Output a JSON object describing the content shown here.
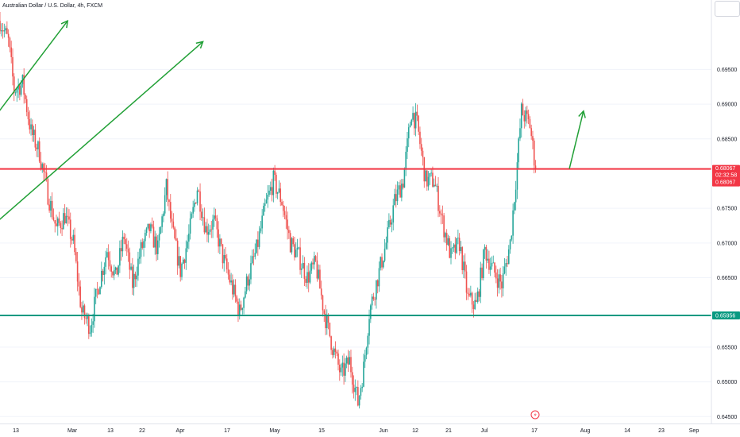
{
  "header": {
    "title": "Australian Dollar / U.S. Dollar, 4h, FXCM"
  },
  "colors": {
    "up": "#26a69a",
    "down": "#ef5350",
    "resistance": "#f23645",
    "support": "#089981",
    "arrow": "#21a036",
    "axis_text": "#131722",
    "grid": "#f0f3fa"
  },
  "chart_data": {
    "type": "candlestick",
    "symbol": "AUDUSD",
    "interval": "4h",
    "ylim": [
      0.644,
      0.705
    ],
    "y_ticks": [
      "0.69500",
      "0.69000",
      "0.68500",
      "0.67500",
      "0.67000",
      "0.66500",
      "0.65500",
      "0.65000",
      "0.64500"
    ],
    "x_ticks": [
      "13",
      "Mar",
      "13",
      "22",
      "Apr",
      "17",
      "May",
      "15",
      "Jun",
      "12",
      "21",
      "Jul",
      "17",
      "Aug",
      "14",
      "23",
      "Sep"
    ],
    "price_path": [
      {
        "d": 0,
        "p": 0.702
      },
      {
        "d": 3,
        "p": 0.699
      },
      {
        "d": 5,
        "p": 0.692
      },
      {
        "d": 8,
        "p": 0.693
      },
      {
        "d": 11,
        "p": 0.686
      },
      {
        "d": 14,
        "p": 0.683
      },
      {
        "d": 17,
        "p": 0.677
      },
      {
        "d": 20,
        "p": 0.672
      },
      {
        "d": 23,
        "p": 0.674
      },
      {
        "d": 26,
        "p": 0.67
      },
      {
        "d": 29,
        "p": 0.66
      },
      {
        "d": 32,
        "p": 0.658
      },
      {
        "d": 35,
        "p": 0.664
      },
      {
        "d": 38,
        "p": 0.669
      },
      {
        "d": 41,
        "p": 0.665
      },
      {
        "d": 44,
        "p": 0.671
      },
      {
        "d": 47,
        "p": 0.664
      },
      {
        "d": 50,
        "p": 0.669
      },
      {
        "d": 53,
        "p": 0.672
      },
      {
        "d": 56,
        "p": 0.669
      },
      {
        "d": 59,
        "p": 0.678
      },
      {
        "d": 61,
        "p": 0.672
      },
      {
        "d": 64,
        "p": 0.666
      },
      {
        "d": 67,
        "p": 0.671
      },
      {
        "d": 70,
        "p": 0.678
      },
      {
        "d": 73,
        "p": 0.672
      },
      {
        "d": 76,
        "p": 0.673
      },
      {
        "d": 79,
        "p": 0.668
      },
      {
        "d": 82,
        "p": 0.664
      },
      {
        "d": 85,
        "p": 0.66
      },
      {
        "d": 88,
        "p": 0.665
      },
      {
        "d": 91,
        "p": 0.669
      },
      {
        "d": 94,
        "p": 0.675
      },
      {
        "d": 97,
        "p": 0.679
      },
      {
        "d": 100,
        "p": 0.676
      },
      {
        "d": 103,
        "p": 0.67
      },
      {
        "d": 106,
        "p": 0.668
      },
      {
        "d": 109,
        "p": 0.665
      },
      {
        "d": 112,
        "p": 0.667
      },
      {
        "d": 115,
        "p": 0.66
      },
      {
        "d": 118,
        "p": 0.655
      },
      {
        "d": 121,
        "p": 0.651
      },
      {
        "d": 124,
        "p": 0.653
      },
      {
        "d": 127,
        "p": 0.647
      },
      {
        "d": 129,
        "p": 0.652
      },
      {
        "d": 131,
        "p": 0.66
      },
      {
        "d": 134,
        "p": 0.665
      },
      {
        "d": 137,
        "p": 0.67
      },
      {
        "d": 140,
        "p": 0.676
      },
      {
        "d": 143,
        "p": 0.679
      },
      {
        "d": 146,
        "p": 0.689
      },
      {
        "d": 148,
        "p": 0.687
      },
      {
        "d": 151,
        "p": 0.679
      },
      {
        "d": 154,
        "p": 0.679
      },
      {
        "d": 157,
        "p": 0.673
      },
      {
        "d": 160,
        "p": 0.668
      },
      {
        "d": 163,
        "p": 0.67
      },
      {
        "d": 166,
        "p": 0.662
      },
      {
        "d": 169,
        "p": 0.661
      },
      {
        "d": 172,
        "p": 0.669
      },
      {
        "d": 175,
        "p": 0.666
      },
      {
        "d": 178,
        "p": 0.664
      },
      {
        "d": 181,
        "p": 0.67
      },
      {
        "d": 183,
        "p": 0.679
      },
      {
        "d": 185,
        "p": 0.689
      },
      {
        "d": 188,
        "p": 0.687
      },
      {
        "d": 190,
        "p": 0.6807
      }
    ],
    "levels": [
      {
        "name": "resistance",
        "value": 0.68067,
        "label": "0.68067",
        "countdown": "02:32:58",
        "label2": "0.68067"
      },
      {
        "name": "support",
        "value": 0.65956,
        "label": "0.65956"
      }
    ],
    "arrows": [
      {
        "from": {
          "d": -4,
          "p": 0.687
        },
        "to": {
          "d": 24,
          "p": 0.702
        }
      },
      {
        "from": {
          "d": -4,
          "p": 0.672
        },
        "to": {
          "d": 72,
          "p": 0.699
        }
      },
      {
        "from": {
          "d": 202,
          "p": 0.6807
        },
        "to": {
          "d": 207,
          "p": 0.689
        }
      }
    ]
  }
}
